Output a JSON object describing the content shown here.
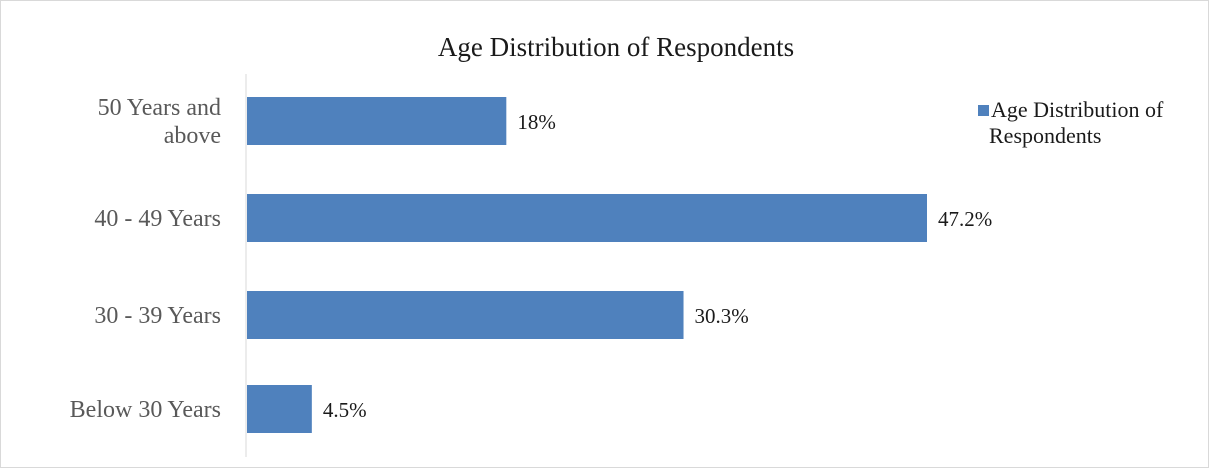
{
  "chart_data": {
    "type": "bar",
    "orientation": "horizontal",
    "title": "Age Distribution of Respondents",
    "categories": [
      "50 Years and above",
      "40 - 49 Years",
      "30 - 39 Years",
      "Below 30 Years"
    ],
    "category_lines": [
      [
        "50 Years and",
        "above"
      ],
      [
        "40 - 49 Years"
      ],
      [
        "30 - 39 Years"
      ],
      [
        "Below 30 Years"
      ]
    ],
    "series": [
      {
        "name": "Age Distribution of Respondents",
        "values": [
          18,
          47.2,
          30.3,
          4.5
        ],
        "labels": [
          "18%",
          "47.2%",
          "30.3%",
          "4.5%"
        ],
        "color": "#4f81bd"
      }
    ],
    "legend_lines": [
      "Age Distribution of",
      "Respondents"
    ],
    "xlim": [
      0,
      50
    ],
    "grid": false,
    "legend_position": "right"
  }
}
